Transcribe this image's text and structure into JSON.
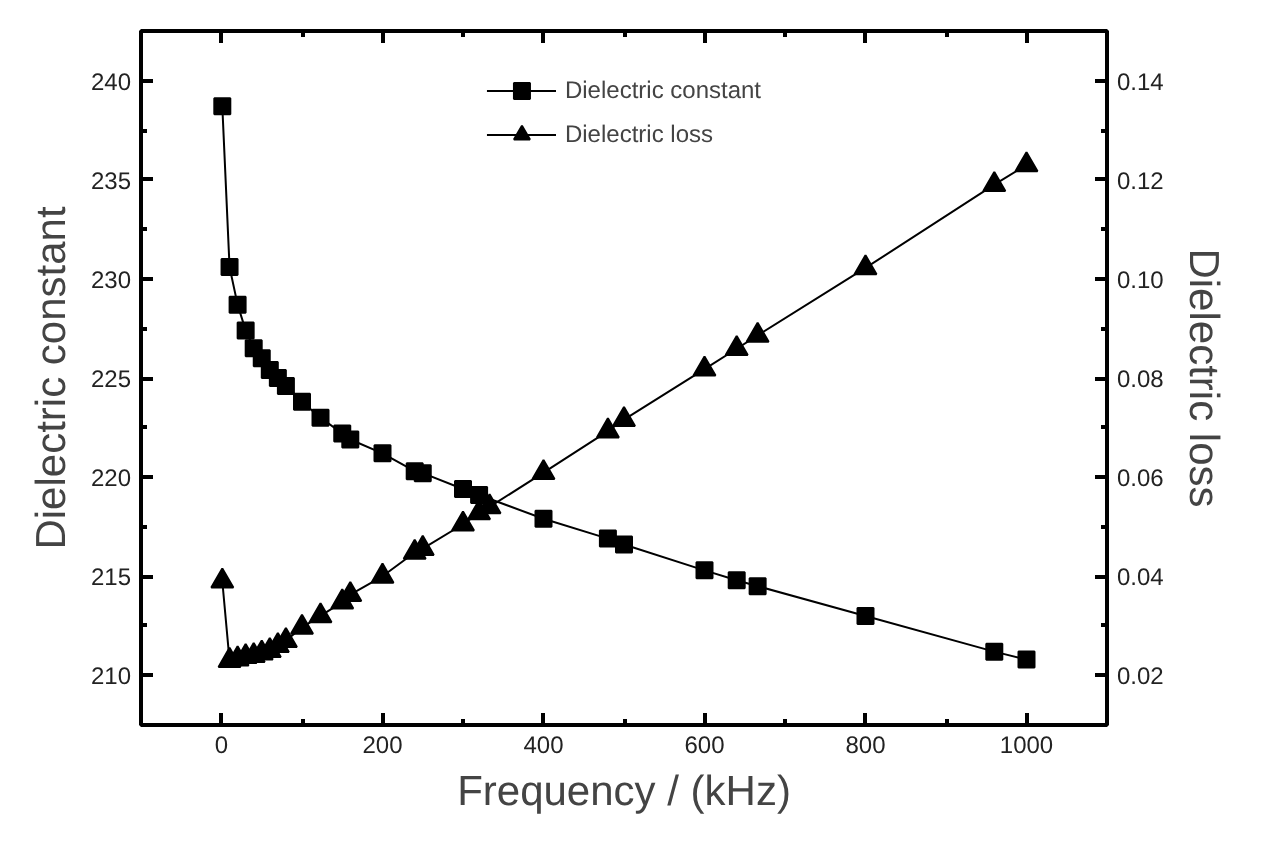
{
  "chart_data": {
    "type": "line",
    "xlabel": "Frequency / (kHz)",
    "ylabel": "Dielectric constant",
    "y2label": "Dielectric loss",
    "xlim": [
      -100,
      1100
    ],
    "xticks": [
      0,
      200,
      400,
      600,
      800,
      1000
    ],
    "ylim": [
      207.5,
      242.5
    ],
    "yticks": [
      210,
      215,
      220,
      225,
      230,
      235,
      240
    ],
    "y2lim": [
      0.01,
      0.15
    ],
    "y2ticks": [
      {
        "value": 0.02,
        "label": "0.02"
      },
      {
        "value": 0.04,
        "label": "0.04"
      },
      {
        "value": 0.06,
        "label": "0.06"
      },
      {
        "value": 0.08,
        "label": "0.08"
      },
      {
        "value": 0.1,
        "label": "0.10"
      },
      {
        "value": 0.12,
        "label": "0.12"
      },
      {
        "value": 0.14,
        "label": "0.14"
      }
    ],
    "grid": false,
    "legend": "top",
    "line_style": "solid",
    "series": [
      {
        "name": "Dielectric constant",
        "color": "#000000",
        "marker": "square",
        "x": [
          1,
          10,
          20,
          30,
          40,
          50,
          60,
          70,
          80,
          100,
          123,
          150,
          160,
          200,
          240,
          250,
          300,
          320,
          400,
          480,
          500,
          600,
          640,
          666,
          800,
          960,
          1000
        ],
        "values": [
          238.7,
          230.6,
          228.7,
          227.4,
          226.5,
          226.0,
          225.4,
          225.0,
          224.6,
          223.8,
          223.0,
          222.2,
          221.9,
          221.2,
          220.3,
          220.2,
          219.4,
          219.1,
          217.9,
          216.9,
          216.6,
          215.3,
          214.8,
          214.5,
          213.0,
          211.2,
          210.8
        ]
      },
      {
        "name": "Dielectric loss",
        "color": "#000000",
        "marker": "triangle",
        "axis": "y2",
        "x": [
          1,
          10,
          20,
          30,
          40,
          50,
          60,
          70,
          80,
          100,
          123,
          150,
          160,
          200,
          240,
          250,
          300,
          320,
          333,
          400,
          480,
          500,
          600,
          640,
          666,
          800,
          960,
          1000
        ],
        "values": [
          0.039,
          0.023,
          0.0233,
          0.0238,
          0.024,
          0.0245,
          0.025,
          0.026,
          0.027,
          0.0297,
          0.032,
          0.0348,
          0.0363,
          0.04,
          0.0448,
          0.0456,
          0.0505,
          0.0528,
          0.054,
          0.0609,
          0.0693,
          0.0716,
          0.0818,
          0.0859,
          0.0886,
          0.1022,
          0.119,
          0.123
        ]
      }
    ]
  }
}
